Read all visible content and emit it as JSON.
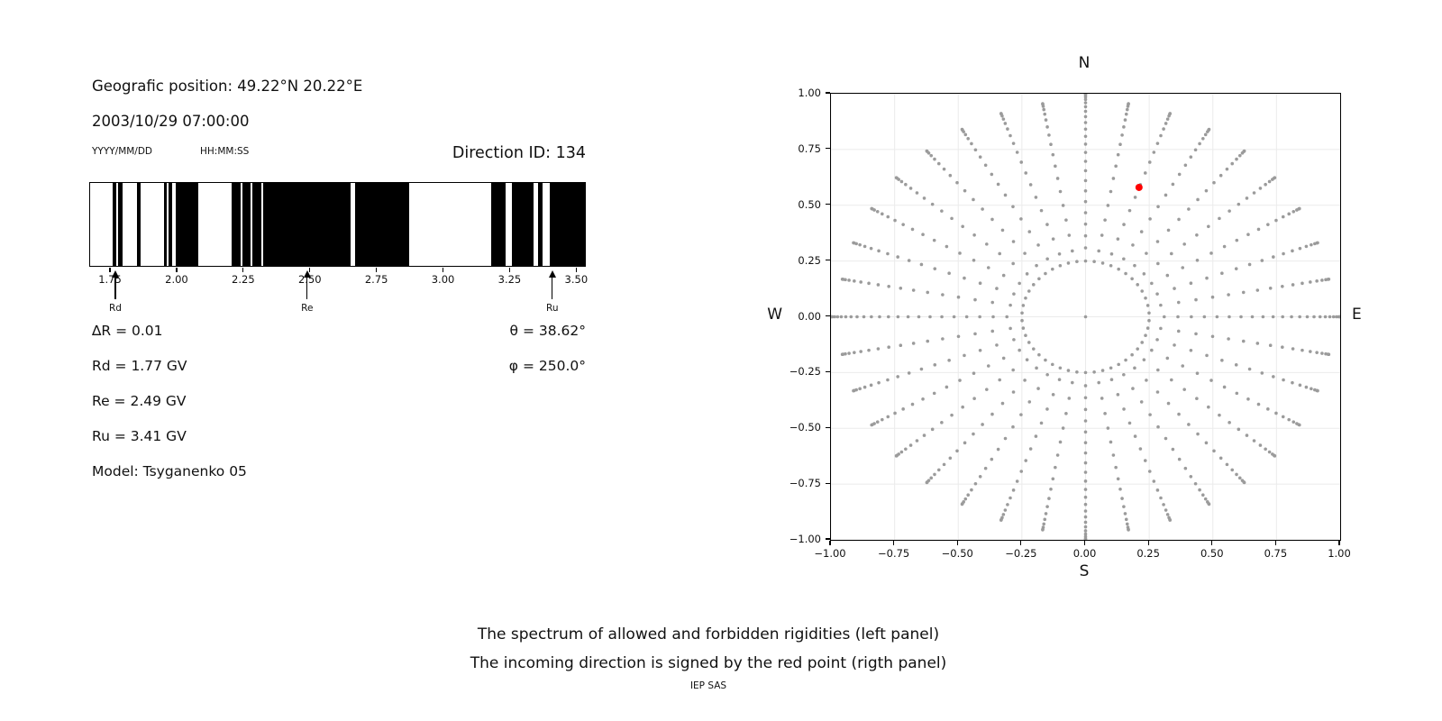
{
  "header": {
    "geo_position": "Geografic position: 49.22°N 20.22°E",
    "datetime": "2003/10/29 07:00:00",
    "date_format": "YYYY/MM/DD",
    "time_format": "HH:MM:SS",
    "direction_id": "Direction ID: 134"
  },
  "stats": {
    "delta_r": "∆R = 0.01",
    "rd": "Rd = 1.77 GV",
    "re": "Re = 2.49 GV",
    "ru": "Ru = 3.41 GV",
    "model": "Model: Tsyganenko 05",
    "theta": "θ = 38.62°",
    "phi": "φ = 250.0°"
  },
  "captions": {
    "line1": "The spectrum of allowed and forbidden rigidities (left panel)",
    "line2": "The incoming direction is signed by the red point (rigth panel)",
    "credit": "IEP SAS"
  },
  "chart_data": [
    {
      "type": "bar",
      "name": "rigidity-spectrum-barcode",
      "description_units": "GV",
      "xlim": [
        1.672,
        3.536
      ],
      "bar_color": "#000000",
      "background": "#ffffff",
      "xticks": [
        {
          "v": 1.75,
          "label": "1.75"
        },
        {
          "v": 2.0,
          "label": "2.00"
        },
        {
          "v": 2.25,
          "label": "2.25"
        },
        {
          "v": 2.5,
          "label": "2.50"
        },
        {
          "v": 2.75,
          "label": "2.75"
        },
        {
          "v": 3.0,
          "label": "3.00"
        },
        {
          "v": 3.25,
          "label": "3.25"
        },
        {
          "v": 3.5,
          "label": "3.50"
        }
      ],
      "forbidden_intervals_gv": [
        [
          1.762,
          1.776
        ],
        [
          1.782,
          1.799
        ],
        [
          1.852,
          1.867
        ],
        [
          1.954,
          1.965
        ],
        [
          1.972,
          1.984
        ],
        [
          1.999,
          2.084
        ],
        [
          2.208,
          2.241
        ],
        [
          2.25,
          2.279
        ],
        [
          2.287,
          2.32
        ],
        [
          2.328,
          2.655
        ],
        [
          2.67,
          2.873
        ],
        [
          3.183,
          3.238
        ],
        [
          3.259,
          3.34
        ],
        [
          3.36,
          3.374
        ],
        [
          3.401,
          3.536
        ]
      ],
      "markers": [
        {
          "label": "Rd",
          "value": 1.77
        },
        {
          "label": "Re",
          "value": 2.49
        },
        {
          "label": "Ru",
          "value": 3.41
        }
      ]
    },
    {
      "type": "scatter",
      "name": "incoming-direction-map",
      "xlim": [
        -1,
        1
      ],
      "ylim": [
        -1,
        1
      ],
      "grid": true,
      "grid_color": "#ebebeb",
      "compass": {
        "n": "N",
        "s": "S",
        "w": "W",
        "e": "E"
      },
      "xticks": [
        {
          "v": -1.0,
          "label": "−1.00"
        },
        {
          "v": -0.75,
          "label": "−0.75"
        },
        {
          "v": -0.5,
          "label": "−0.50"
        },
        {
          "v": -0.25,
          "label": "−0.25"
        },
        {
          "v": 0.0,
          "label": "0.00"
        },
        {
          "v": 0.25,
          "label": "0.25"
        },
        {
          "v": 0.5,
          "label": "0.50"
        },
        {
          "v": 0.75,
          "label": "0.75"
        },
        {
          "v": 1.0,
          "label": "1.00"
        }
      ],
      "yticks": [
        {
          "v": 1.0,
          "label": "1.00"
        },
        {
          "v": 0.75,
          "label": "0.75"
        },
        {
          "v": 0.5,
          "label": "0.50"
        },
        {
          "v": 0.25,
          "label": "0.25"
        },
        {
          "v": 0.0,
          "label": "0.00"
        },
        {
          "v": -0.25,
          "label": "−0.25"
        },
        {
          "v": -0.5,
          "label": "−0.50"
        },
        {
          "v": -0.75,
          "label": "−0.75"
        },
        {
          "v": -1.0,
          "label": "−1.00"
        }
      ],
      "series": [
        {
          "name": "direction-grid-dots",
          "color": "#9b9b9b",
          "dot_radius_px": 1.8,
          "center_dot": [
            0,
            0
          ],
          "inner_ring": {
            "radius": 0.25,
            "count": 46
          },
          "spokes": {
            "azimuth_start_deg": 0,
            "azimuth_step_deg": 10,
            "count": 36,
            "radius_rule": "r = r_max * sin(zenith)",
            "cardinal": {
              "r_max": 1.0,
              "zenith_start_deg": 18,
              "zenith_end_deg": 90,
              "points": 23
            },
            "other": {
              "r_max": 0.97,
              "zenith_start_deg": 18,
              "zenith_end_deg": 90,
              "points": 17
            }
          }
        },
        {
          "name": "incoming-direction-point",
          "color": "#ff0000",
          "dot_radius_px": 4,
          "points": [
            [
              0.21,
              0.58
            ]
          ]
        }
      ]
    }
  ]
}
